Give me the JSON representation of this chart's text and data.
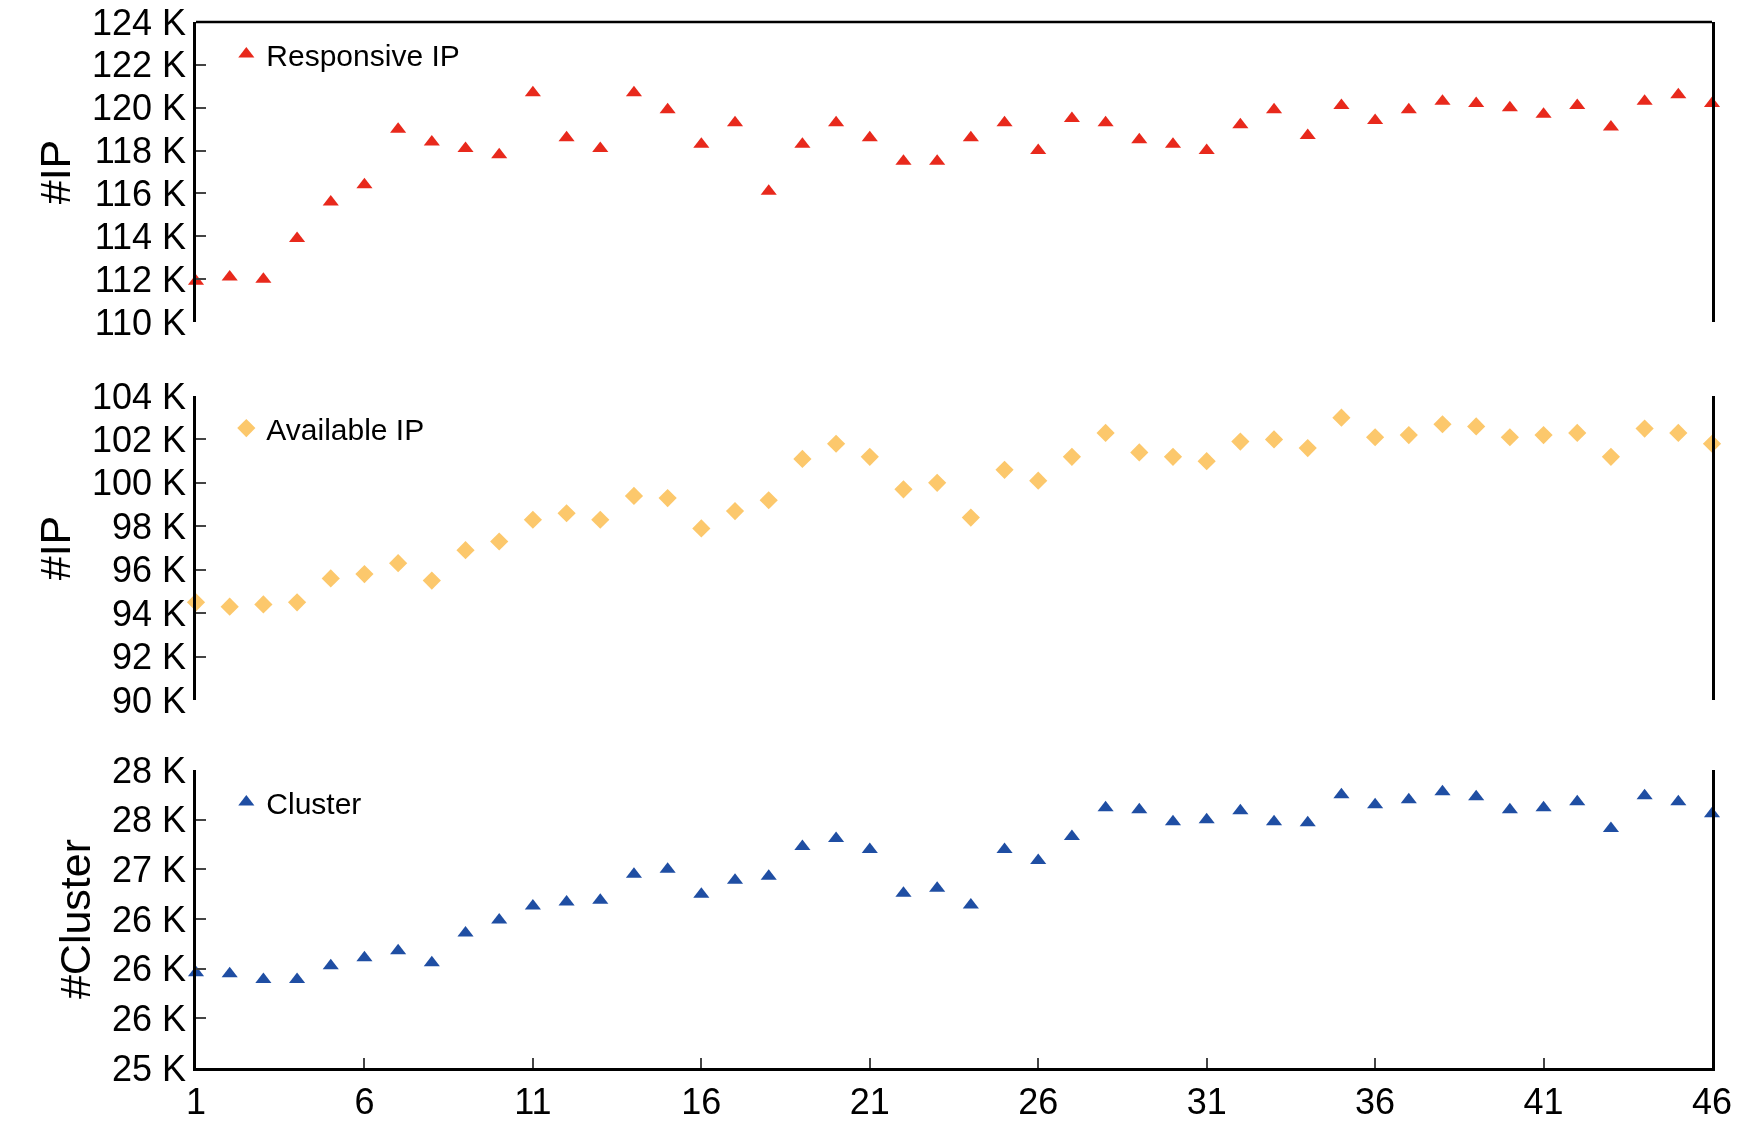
{
  "chart_data": [
    {
      "type": "scatter",
      "ylabel": "#IP",
      "legend": "top left",
      "marker": "triangle",
      "grid": false,
      "tick_labels": "y",
      "x": [
        1,
        2,
        3,
        4,
        5,
        6,
        7,
        8,
        9,
        10,
        11,
        12,
        13,
        14,
        15,
        16,
        17,
        18,
        19,
        20,
        21,
        22,
        23,
        24,
        25,
        26,
        27,
        28,
        29,
        30,
        31,
        32,
        33,
        34,
        35,
        36,
        37,
        38,
        39,
        40,
        41,
        42,
        43,
        44,
        45,
        46
      ],
      "xlim": [
        1,
        46
      ],
      "xticks": [
        1,
        6,
        11,
        16,
        21,
        26,
        31,
        36,
        41,
        46
      ],
      "ylim": [
        110000,
        124000
      ],
      "yticks": [
        {
          "value": 110000,
          "label": "110 K"
        },
        {
          "value": 112000,
          "label": "112 K"
        },
        {
          "value": 114000,
          "label": "114 K"
        },
        {
          "value": 116000,
          "label": "116 K"
        },
        {
          "value": 118000,
          "label": "118 K"
        },
        {
          "value": 120000,
          "label": "120 K"
        },
        {
          "value": 122000,
          "label": "122 K"
        },
        {
          "value": 124000,
          "label": "124 K"
        }
      ],
      "series": [
        {
          "name": "Responsive IP",
          "color": "#e8291c",
          "values": [
            111900,
            112100,
            112000,
            113900,
            115600,
            116400,
            119000,
            118400,
            118100,
            117800,
            120700,
            118600,
            118100,
            120700,
            119900,
            118300,
            119300,
            116100,
            118300,
            119300,
            118600,
            117500,
            117500,
            118600,
            119300,
            118000,
            119500,
            119300,
            118500,
            118300,
            118000,
            119200,
            119900,
            118700,
            120100,
            119400,
            119900,
            120300,
            120200,
            120000,
            119700,
            120100,
            119100,
            120300,
            120600,
            120200
          ]
        }
      ]
    },
    {
      "type": "scatter",
      "ylabel": "#IP",
      "legend": "top left",
      "marker": "diamond",
      "grid": false,
      "tick_labels": "y",
      "x": [
        1,
        2,
        3,
        4,
        5,
        6,
        7,
        8,
        9,
        10,
        11,
        12,
        13,
        14,
        15,
        16,
        17,
        18,
        19,
        20,
        21,
        22,
        23,
        24,
        25,
        26,
        27,
        28,
        29,
        30,
        31,
        32,
        33,
        34,
        35,
        36,
        37,
        38,
        39,
        40,
        41,
        42,
        43,
        44,
        45,
        46
      ],
      "xlim": [
        1,
        46
      ],
      "xticks": [
        1,
        6,
        11,
        16,
        21,
        26,
        31,
        36,
        41,
        46
      ],
      "ylim": [
        90000,
        104000
      ],
      "yticks": [
        {
          "value": 90000,
          "label": "90 K"
        },
        {
          "value": 92000,
          "label": "92 K"
        },
        {
          "value": 94000,
          "label": "94 K"
        },
        {
          "value": 96000,
          "label": "96 K"
        },
        {
          "value": 98000,
          "label": "98 K"
        },
        {
          "value": 100000,
          "label": "100 K"
        },
        {
          "value": 102000,
          "label": "102 K"
        },
        {
          "value": 104000,
          "label": "104 K"
        }
      ],
      "series": [
        {
          "name": "Available IP",
          "color": "#fcc86c",
          "values": [
            94500,
            94300,
            94400,
            94500,
            95600,
            95800,
            96300,
            95500,
            96900,
            97300,
            98300,
            98600,
            98300,
            99400,
            99300,
            97900,
            98700,
            99200,
            101100,
            101800,
            101200,
            99700,
            100000,
            98400,
            100600,
            100100,
            101200,
            102300,
            101400,
            101200,
            101000,
            101900,
            102000,
            101600,
            103000,
            102100,
            102200,
            102700,
            102600,
            102100,
            102200,
            102300,
            101200,
            102500,
            102300,
            101800
          ]
        }
      ]
    },
    {
      "type": "scatter",
      "ylabel": "#Cluster",
      "legend": "top left",
      "marker": "triangle",
      "grid": false,
      "x": [
        1,
        2,
        3,
        4,
        5,
        6,
        7,
        8,
        9,
        10,
        11,
        12,
        13,
        14,
        15,
        16,
        17,
        18,
        19,
        20,
        21,
        22,
        23,
        24,
        25,
        26,
        27,
        28,
        29,
        30,
        31,
        32,
        33,
        34,
        35,
        36,
        37,
        38,
        39,
        40,
        41,
        42,
        43,
        44,
        45,
        46
      ],
      "xlim": [
        1,
        46
      ],
      "xticks": [
        1,
        6,
        11,
        16,
        21,
        26,
        31,
        36,
        41,
        46
      ],
      "ylim": [
        25000,
        28000
      ],
      "yticks": [
        {
          "value": 25000,
          "label": "25 K"
        },
        {
          "value": 25500,
          "label": "26 K"
        },
        {
          "value": 26000,
          "label": "26 K"
        },
        {
          "value": 26500,
          "label": "26 K"
        },
        {
          "value": 27000,
          "label": "27 K"
        },
        {
          "value": 27500,
          "label": "28 K"
        },
        {
          "value": 28000,
          "label": "28 K"
        }
      ],
      "series": [
        {
          "name": "Cluster",
          "color": "#1f4ea3",
          "values": [
            25960,
            25950,
            25890,
            25890,
            26030,
            26110,
            26180,
            26060,
            26360,
            26490,
            26630,
            26670,
            26690,
            26950,
            27000,
            26750,
            26890,
            26930,
            27230,
            27310,
            27200,
            26760,
            26810,
            26640,
            27200,
            27090,
            27330,
            27620,
            27600,
            27480,
            27500,
            27590,
            27480,
            27470,
            27750,
            27650,
            27700,
            27780,
            27730,
            27600,
            27620,
            27680,
            27410,
            27740,
            27680,
            27560
          ]
        }
      ]
    }
  ]
}
